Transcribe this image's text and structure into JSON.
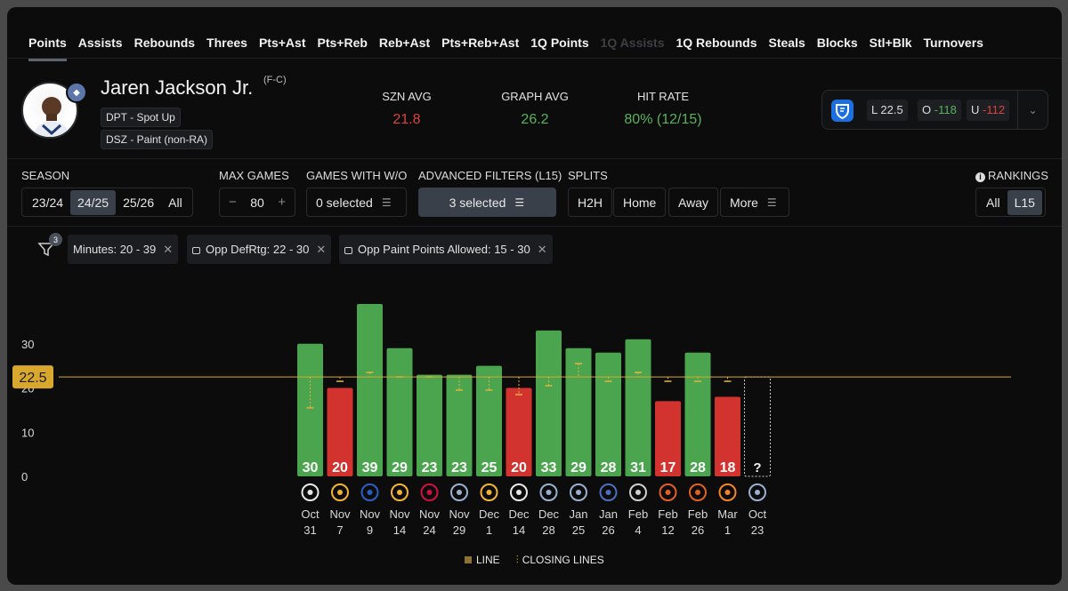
{
  "tabs": [
    {
      "label": "Points",
      "state": "active"
    },
    {
      "label": "Assists",
      "state": "normal"
    },
    {
      "label": "Rebounds",
      "state": "normal"
    },
    {
      "label": "Threes",
      "state": "normal"
    },
    {
      "label": "Pts+Ast",
      "state": "normal"
    },
    {
      "label": "Pts+Reb",
      "state": "normal"
    },
    {
      "label": "Reb+Ast",
      "state": "normal"
    },
    {
      "label": "Pts+Reb+Ast",
      "state": "normal"
    },
    {
      "label": "1Q Points",
      "state": "normal"
    },
    {
      "label": "1Q Assists",
      "state": "disabled"
    },
    {
      "label": "1Q Rebounds",
      "state": "normal"
    },
    {
      "label": "Steals",
      "state": "normal"
    },
    {
      "label": "Blocks",
      "state": "normal"
    },
    {
      "label": "Stl+Blk",
      "state": "normal"
    },
    {
      "label": "Turnovers",
      "state": "normal"
    }
  ],
  "player": {
    "name": "Jaren Jackson Jr.",
    "position": "(F-C)",
    "tags": [
      "DPT - Spot Up",
      "DSZ - Paint (non-RA)"
    ],
    "team_icon": "grizzlies-logo-icon"
  },
  "stats": {
    "szn_avg_label": "SZN AVG",
    "szn_avg": "21.8",
    "graph_avg_label": "GRAPH AVG",
    "graph_avg": "26.2",
    "hit_rate_label": "HIT RATE",
    "hit_rate": "80% (12/15)"
  },
  "lines": {
    "book_icon": "fanduel-shield-icon",
    "line_prefix": "L",
    "line_value": "22.5",
    "over_prefix": "O",
    "over_value": "-118",
    "under_prefix": "U",
    "under_value": "-112"
  },
  "filters": {
    "season_label": "SEASON",
    "season_options": [
      "23/24",
      "24/25",
      "25/26",
      "All"
    ],
    "season_selected": "24/25",
    "max_games_label": "MAX GAMES",
    "max_games_value": "80",
    "minus_glyph": "−",
    "plus_glyph": "+",
    "games_wo_label": "GAMES WITH W/O",
    "games_wo_value": "0 selected",
    "advanced_label": "ADVANCED FILTERS (L15)",
    "advanced_value": "3 selected",
    "splits_label": "SPLITS",
    "splits_options": [
      "H2H",
      "Home",
      "Away",
      "More"
    ],
    "rankings_label": "RANKINGS",
    "rankings_options": [
      "All",
      "L15"
    ],
    "rankings_selected": "L15"
  },
  "active_filters": {
    "count": "3",
    "chips": [
      {
        "label": "Minutes: 20 - 39",
        "locked": false
      },
      {
        "label": "Opp DefRtg: 22 - 30",
        "locked": true
      },
      {
        "label": "Opp Paint Points Allowed: 15 - 30",
        "locked": true
      }
    ]
  },
  "chart_data": {
    "type": "bar",
    "line": 22.5,
    "line_label": "22.5",
    "ylim": [
      0,
      40
    ],
    "yticks": [
      0,
      10,
      20,
      30
    ],
    "colors": {
      "over": "#4aa54e",
      "under": "#d3332f",
      "line": "#d8a72e"
    },
    "games": [
      {
        "month": "Oct",
        "day": "31",
        "value": 30,
        "closing": 15.5,
        "opp": "nets-logo-icon"
      },
      {
        "month": "Nov",
        "day": "7",
        "value": 20,
        "closing": 21.5,
        "opp": "lakers-logo-icon"
      },
      {
        "month": "Nov",
        "day": "9",
        "value": 39,
        "closing": 23.5,
        "opp": "wizards-logo-icon"
      },
      {
        "month": "Nov",
        "day": "14",
        "value": 29,
        "closing": 22.5,
        "opp": "lakers-logo-icon"
      },
      {
        "month": "Nov",
        "day": "24",
        "value": 23,
        "closing": 22.5,
        "opp": "bulls-logo-icon"
      },
      {
        "month": "Nov",
        "day": "29",
        "value": 23,
        "closing": 19.5,
        "opp": "pelicans-logo-icon"
      },
      {
        "month": "Dec",
        "day": "1",
        "value": 25,
        "closing": 19.5,
        "opp": "pacers-logo-icon"
      },
      {
        "month": "Dec",
        "day": "14",
        "value": 20,
        "closing": 18.5,
        "opp": "nets-logo-icon"
      },
      {
        "month": "Dec",
        "day": "28",
        "value": 33,
        "closing": 20.5,
        "opp": "pelicans-logo-icon"
      },
      {
        "month": "Jan",
        "day": "25",
        "value": 29,
        "closing": 25.5,
        "opp": "pelicans-logo-icon"
      },
      {
        "month": "Jan",
        "day": "26",
        "value": 28,
        "closing": 21.5,
        "opp": "jazz-logo-icon"
      },
      {
        "month": "Feb",
        "day": "4",
        "value": 31,
        "closing": 23.5,
        "opp": "spurs-logo-icon"
      },
      {
        "month": "Feb",
        "day": "12",
        "value": 17,
        "closing": 21.5,
        "opp": "suns-logo-icon"
      },
      {
        "month": "Feb",
        "day": "26",
        "value": 28,
        "closing": 21.5,
        "opp": "suns-logo-icon"
      },
      {
        "month": "Mar",
        "day": "1",
        "value": 18,
        "closing": 21.5,
        "opp": "knicks-logo-icon"
      },
      {
        "month": "Oct",
        "day": "23",
        "value": null,
        "label": "?",
        "opp": "pelicans-logo-icon"
      }
    ]
  },
  "legend": {
    "line": "LINE",
    "closing": "CLOSING LINES"
  }
}
